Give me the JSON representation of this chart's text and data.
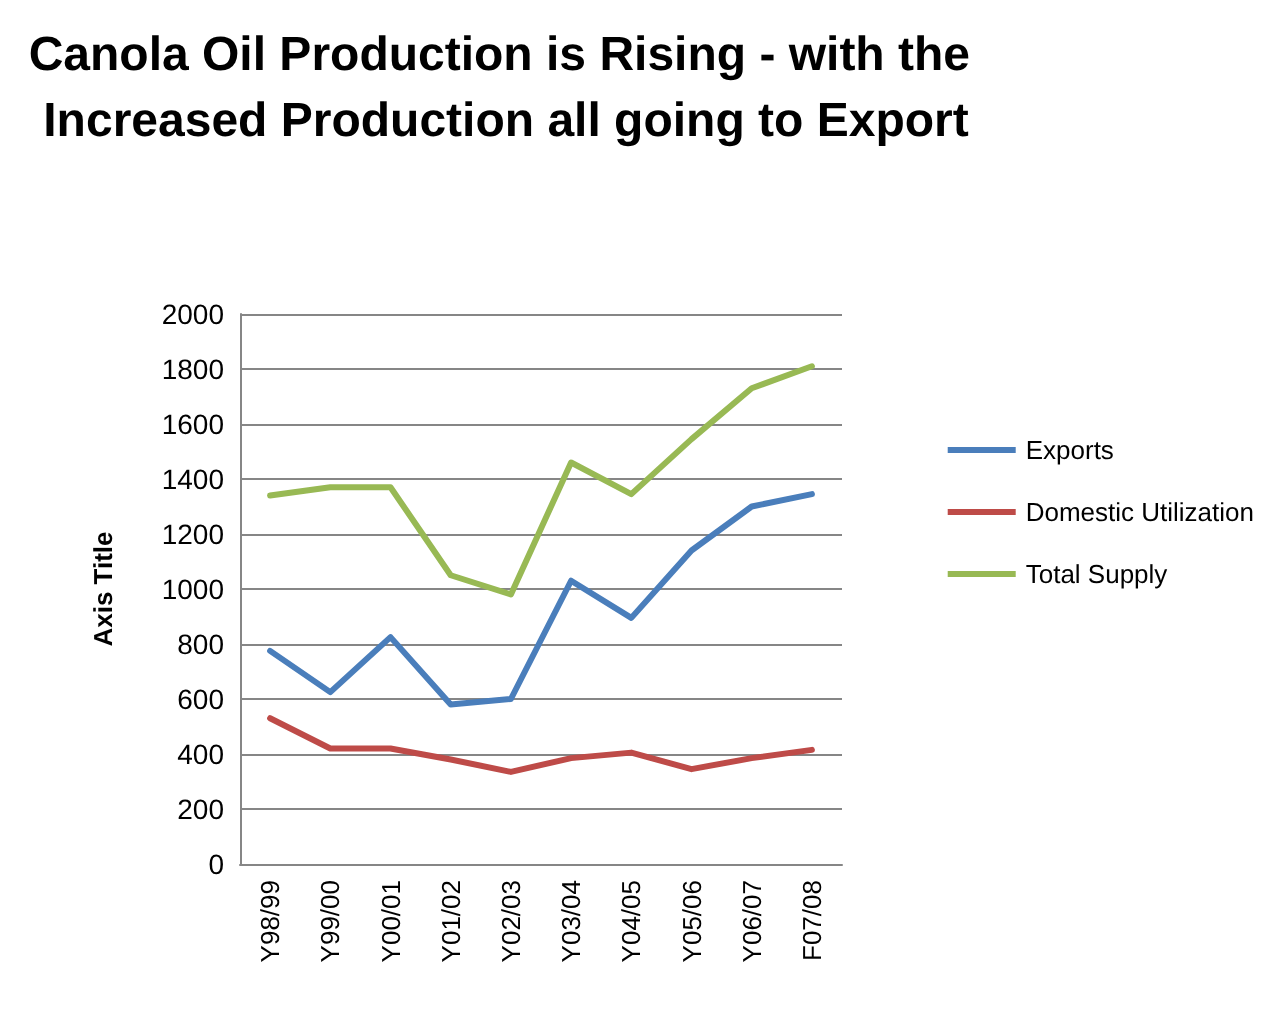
{
  "chart_data": {
    "type": "line",
    "title": "Canola Oil Production is Rising - with the Increased Production all going to Export",
    "ylabel": "Axis Title",
    "categories": [
      "Y98/99",
      "Y99/00",
      "Y00/01",
      "Y01/02",
      "Y02/03",
      "Y03/04",
      "Y04/05",
      "Y05/06",
      "Y06/07",
      "F07/08"
    ],
    "series": [
      {
        "name": "Exports",
        "color": "#4a7ebb",
        "values": [
          775,
          625,
          825,
          580,
          600,
          1030,
          895,
          1140,
          1300,
          1345
        ]
      },
      {
        "name": "Domestic Utilization",
        "color": "#be4b48",
        "values": [
          530,
          420,
          420,
          380,
          335,
          385,
          405,
          345,
          385,
          415
        ]
      },
      {
        "name": "Total Supply",
        "color": "#98b954",
        "values": [
          1340,
          1370,
          1370,
          1050,
          980,
          1460,
          1345,
          1545,
          1730,
          1810
        ]
      }
    ],
    "ylim": [
      0,
      2000
    ],
    "yticks": [
      0,
      200,
      400,
      600,
      800,
      1000,
      1200,
      1400,
      1600,
      1800,
      2000
    ],
    "grid": "y",
    "legend": "right",
    "marker": "none",
    "line_style": "solid"
  }
}
